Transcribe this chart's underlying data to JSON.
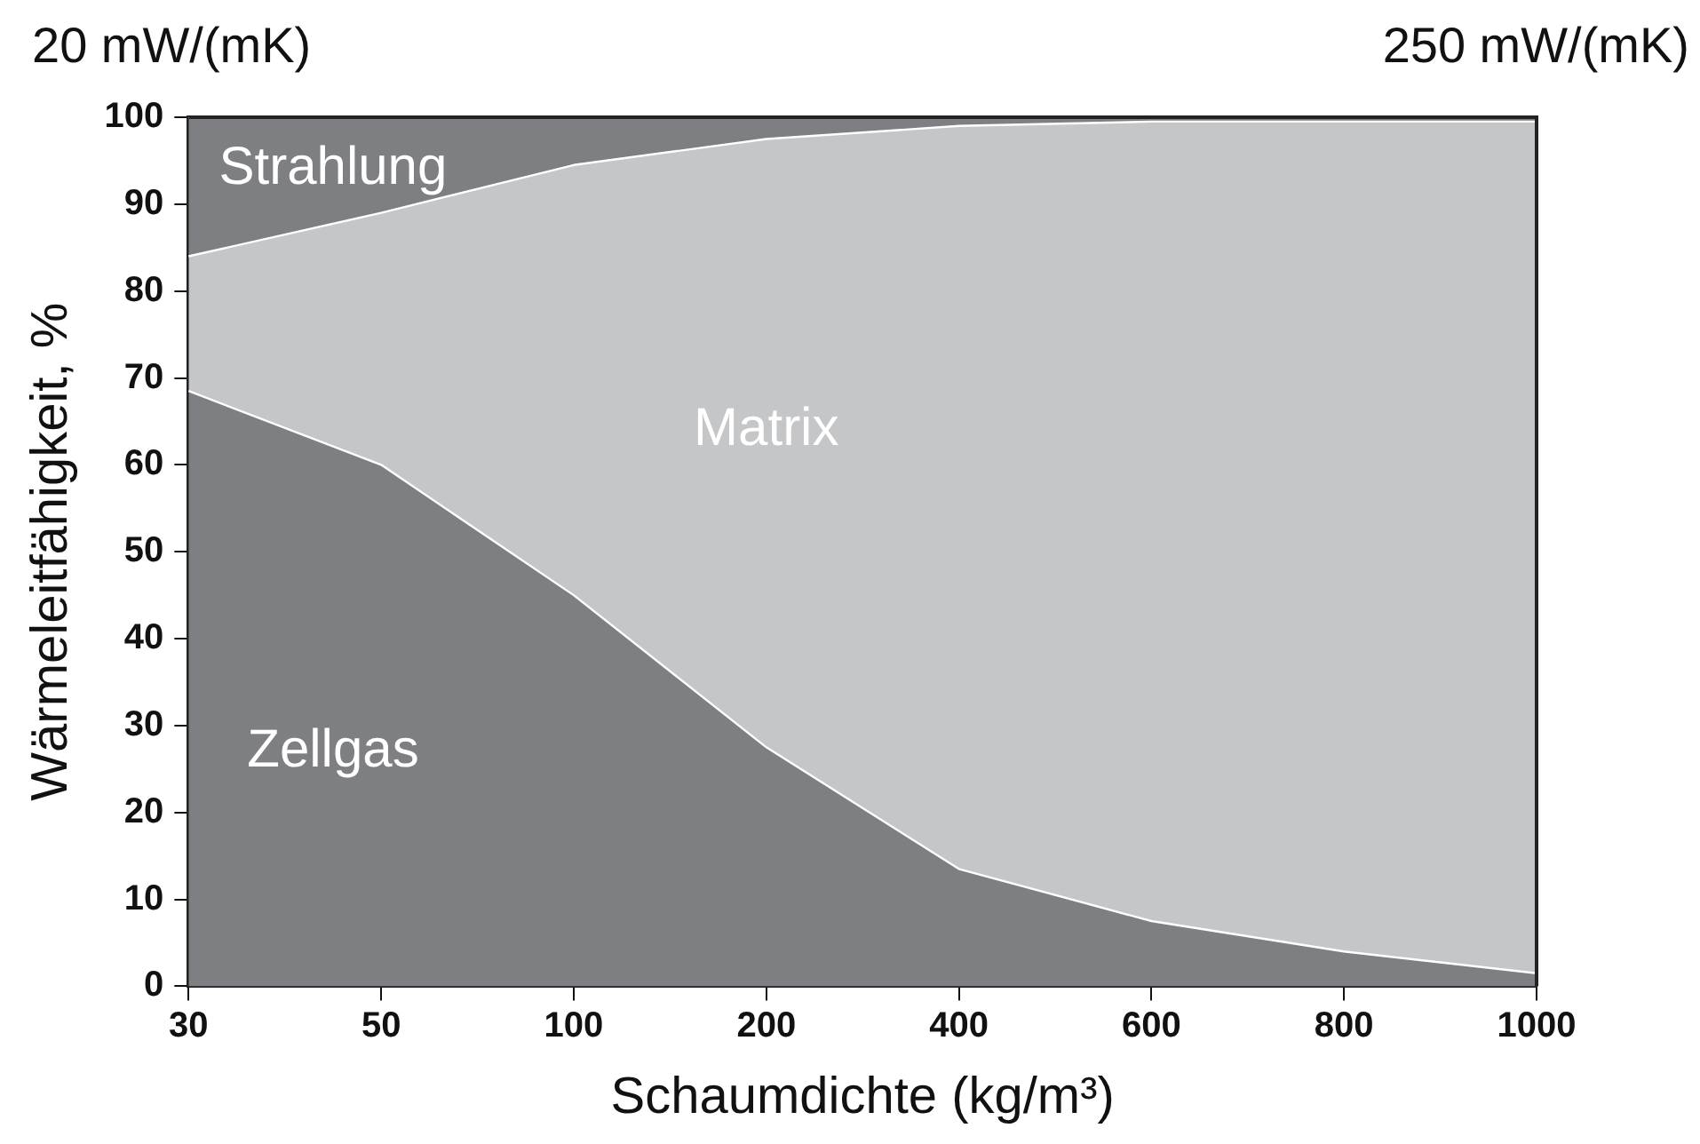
{
  "chart_data": {
    "type": "area",
    "stacked": true,
    "xlabel": "Schaumdichte (kg/m³)",
    "ylabel": "Wärmeleitfähigkeit, %",
    "annotations": [
      "20 mW/(mK)",
      "250 mW/(mK)"
    ],
    "categories": [
      "30",
      "50",
      "100",
      "200",
      "400",
      "600",
      "800",
      "1000"
    ],
    "series": [
      {
        "name": "Zellgas",
        "color": "#7e7f83",
        "values": [
          68.5,
          60,
          45,
          27.5,
          13.5,
          7.5,
          4,
          1.5
        ]
      },
      {
        "name": "Matrix",
        "color": "#c5c6c8",
        "values": [
          15.5,
          29,
          49.5,
          70,
          85.5,
          92,
          95.5,
          98
        ]
      },
      {
        "name": "Strahlung",
        "color": "#7e7f83",
        "values": [
          16,
          11,
          5.5,
          2.5,
          1,
          0.5,
          0.5,
          0.5
        ]
      }
    ],
    "ylim": [
      0,
      100
    ],
    "yticks": [
      0,
      10,
      20,
      30,
      40,
      50,
      60,
      70,
      80,
      90,
      100
    ],
    "legend": false
  }
}
